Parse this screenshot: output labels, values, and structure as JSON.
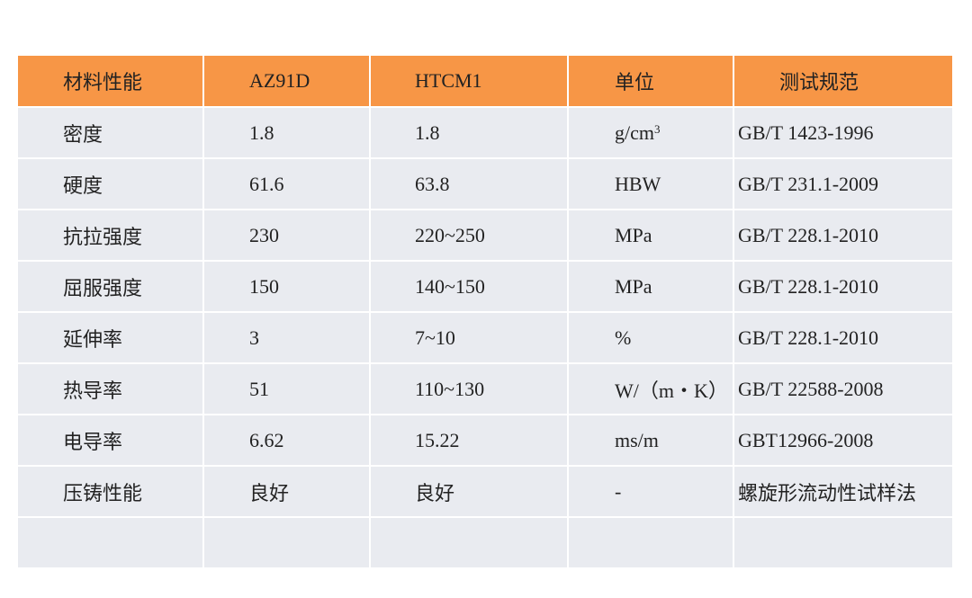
{
  "table": {
    "header": [
      "材料性能",
      "AZ91D",
      "HTCM1",
      "单位",
      "测试规范"
    ],
    "rows": [
      [
        "密度",
        "1.8",
        "1.8",
        {
          "text": "g/cm",
          "sup": "3"
        },
        "GB/T 1423-1996"
      ],
      [
        "硬度",
        "61.6",
        "63.8",
        "HBW",
        "GB/T 231.1-2009"
      ],
      [
        "抗拉强度",
        "230",
        "220~250",
        "MPa",
        "GB/T 228.1-2010"
      ],
      [
        "屈服强度",
        "150",
        "140~150",
        "MPa",
        "GB/T 228.1-2010"
      ],
      [
        "延伸率",
        "3",
        "7~10",
        "%",
        "GB/T 228.1-2010"
      ],
      [
        "热导率",
        "51",
        "110~130",
        "W/（m・K）",
        "GB/T 22588-2008"
      ],
      [
        "电导率",
        "6.62",
        "15.22",
        "ms/m",
        "GBT12966-2008"
      ],
      [
        "压铸性能",
        "良好",
        "良好",
        "-",
        "螺旋形流动性试样法"
      ]
    ]
  }
}
